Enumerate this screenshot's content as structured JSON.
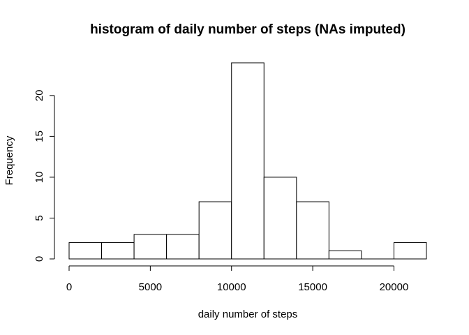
{
  "chart_data": {
    "type": "bar",
    "title": "histogram of daily number of steps (NAs imputed)",
    "xlabel": "daily number of steps",
    "ylabel": "Frequency",
    "bins": [
      {
        "from": 0,
        "to": 2000,
        "count": 2
      },
      {
        "from": 2000,
        "to": 4000,
        "count": 2
      },
      {
        "from": 4000,
        "to": 6000,
        "count": 3
      },
      {
        "from": 6000,
        "to": 8000,
        "count": 3
      },
      {
        "from": 8000,
        "to": 10000,
        "count": 7
      },
      {
        "from": 10000,
        "to": 12000,
        "count": 24
      },
      {
        "from": 12000,
        "to": 14000,
        "count": 10
      },
      {
        "from": 14000,
        "to": 16000,
        "count": 7
      },
      {
        "from": 16000,
        "to": 18000,
        "count": 1
      },
      {
        "from": 18000,
        "to": 20000,
        "count": 0
      },
      {
        "from": 20000,
        "to": 22000,
        "count": 2
      }
    ],
    "xlim": [
      0,
      22000
    ],
    "ylim": [
      0,
      24
    ],
    "x_ticks": [
      0,
      5000,
      10000,
      15000,
      20000
    ],
    "x_tick_labels": [
      "0",
      "5000",
      "10000",
      "15000",
      "20000"
    ],
    "y_ticks": [
      0,
      5,
      10,
      15,
      20
    ],
    "y_tick_labels": [
      "0",
      "5",
      "10",
      "15",
      "20"
    ],
    "grid": false,
    "bar_fill": "#ffffff",
    "bar_stroke": "#000000"
  }
}
